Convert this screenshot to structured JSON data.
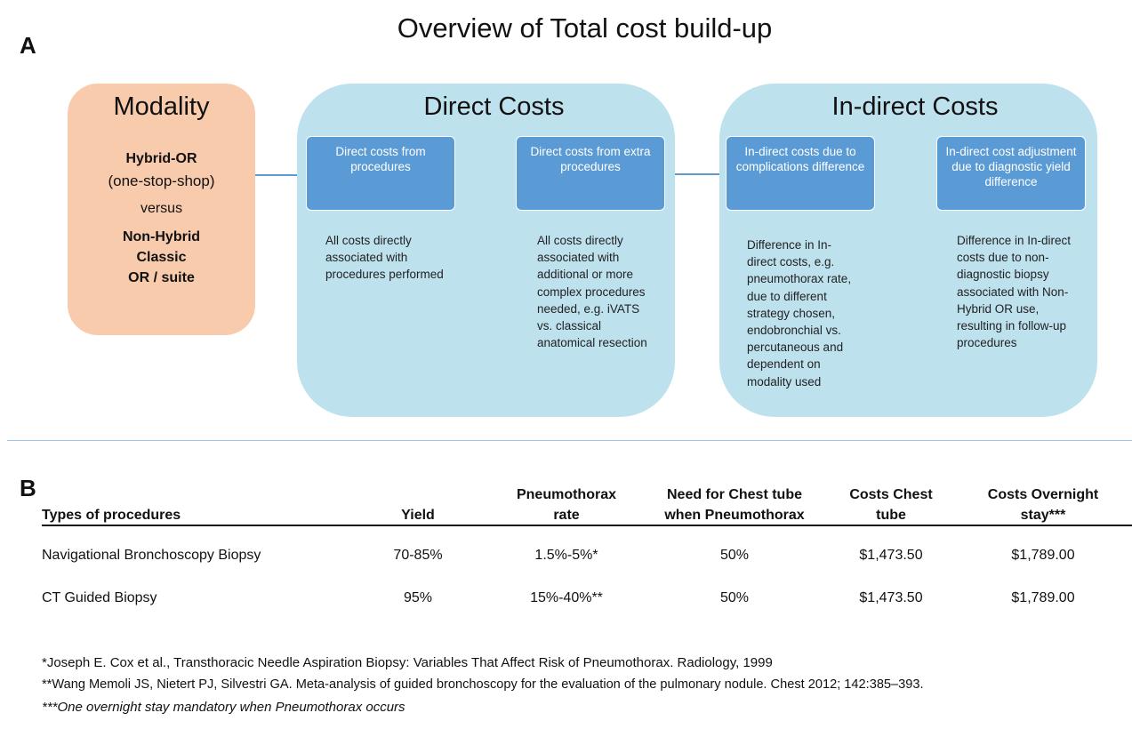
{
  "panel_a": {
    "letter": "A",
    "title": "Overview of Total cost build-up",
    "modality": {
      "title": "Modality",
      "line1": "Hybrid-OR",
      "line2": "(one-stop-shop)",
      "line3": "versus",
      "line4": "Non-Hybrid",
      "line5": "Classic",
      "line6": "OR / suite"
    },
    "direct": {
      "title": "Direct Costs",
      "box1": "Direct costs from procedures",
      "box2": "Direct costs from extra procedures",
      "desc1": "All costs directly\nassociated with\nprocedures performed",
      "desc2": "All costs directly\nassociated  with\nadditional or more\ncomplex  procedures\nneeded, e.g. iVATS\nvs. classical\nanatomical resection"
    },
    "indirect": {
      "title": "In-direct Costs",
      "box1": "In-direct costs due to complications difference",
      "box2": "In-direct cost adjustment due to diagnostic yield difference",
      "desc1": "Difference in In-\ndirect costs, e.g.\npneumothorax rate,\ndue to different\nstrategy chosen,\nendobronchial vs.\npercutaneous and\ndependent on\nmodality used",
      "desc2": "Difference in In-direct\ncosts due to non-\ndiagnostic biopsy\nassociated with Non-\nHybrid OR use,\nresulting in follow-up\nprocedures"
    },
    "colors": {
      "modality": "#f8cbad",
      "group": "#bee1ee",
      "box": "#5b9bd5"
    }
  },
  "panel_b": {
    "letter": "B",
    "headers": {
      "type": "Types of procedures",
      "yield": "Yield",
      "ptx_1": "Pneumothorax",
      "ptx_2": "rate",
      "tube_1": "Need for Chest tube",
      "tube_2": "when Pneumothorax",
      "cost_tube_1": "Costs Chest",
      "cost_tube_2": "tube",
      "cost_stay_1": "Costs Overnight",
      "cost_stay_2": "stay***"
    },
    "rows": [
      {
        "type": "Navigational Bronchoscopy Biopsy",
        "yield": "70-85%",
        "ptx": "1.5%-5%*",
        "tube": "50%",
        "cost_tube": "$1,473.50",
        "cost_stay": "$1,789.00"
      },
      {
        "type": "CT Guided Biopsy",
        "yield": "95%",
        "ptx": "15%-40%**",
        "tube": "50%",
        "cost_tube": "$1,473.50",
        "cost_stay": "$1,789.00"
      }
    ],
    "footnotes": [
      "*Joseph E. Cox et al., Transthoracic Needle Aspiration Biopsy: Variables That Affect Risk of Pneumothorax. Radiology, 1999",
      "**Wang Memoli JS, Nietert PJ, Silvestri GA. Meta-analysis of guided bronchoscopy for the evaluation of the pulmonary nodule. Chest 2012; 142:385–393.",
      "***One overnight stay mandatory when Pneumothorax occurs"
    ]
  }
}
